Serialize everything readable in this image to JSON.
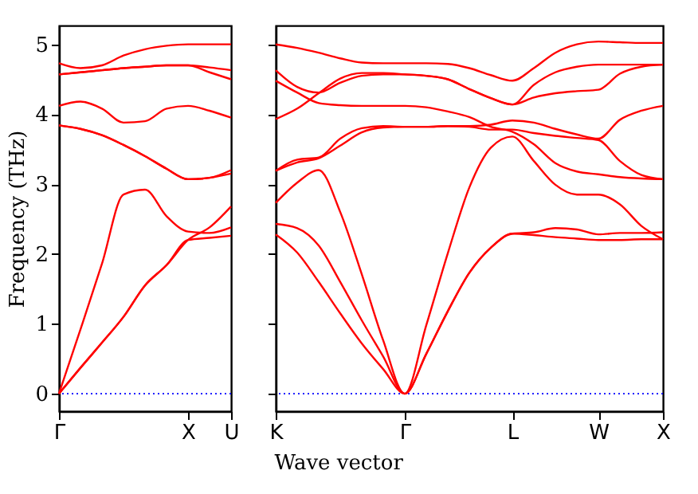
{
  "chart_data": [
    {
      "type": "line",
      "ylabel": "Frequency (THz)",
      "categories": [
        "Γ",
        null,
        null,
        null,
        null,
        null,
        "X",
        null,
        "U"
      ],
      "ylim": [
        -0.25,
        5.27
      ],
      "yticks": [
        0,
        1,
        2,
        3,
        4,
        5
      ],
      "ref_lines": [
        {
          "axis": "y",
          "value": 0,
          "color": "#0000ff",
          "line_style": "dotted"
        }
      ],
      "series": [
        {
          "color": "#ff0000",
          "values": [
            0,
            0.37,
            0.73,
            1.1,
            1.55,
            1.84,
            2.2,
            2.23,
            2.26
          ]
        },
        {
          "color": "#ff0000",
          "values": [
            0,
            0.37,
            0.73,
            1.1,
            1.55,
            1.84,
            2.2,
            2.38,
            2.68
          ]
        },
        {
          "color": "#ff0000",
          "values": [
            0,
            0.92,
            1.86,
            2.85,
            2.92,
            2.54,
            2.32,
            2.3,
            2.38
          ]
        },
        {
          "color": "#ff0000",
          "values": [
            3.84,
            3.79,
            3.7,
            3.56,
            3.4,
            3.22,
            3.07,
            3.09,
            3.15
          ]
        },
        {
          "color": "#ff0000",
          "values": [
            3.84,
            3.79,
            3.7,
            3.56,
            3.4,
            3.22,
            3.07,
            3.09,
            3.2
          ]
        },
        {
          "color": "#ff0000",
          "values": [
            4.12,
            4.18,
            4.08,
            3.88,
            3.9,
            4.08,
            4.12,
            4.05,
            3.95
          ]
        },
        {
          "color": "#ff0000",
          "values": [
            4.57,
            4.6,
            4.63,
            4.66,
            4.68,
            4.7,
            4.7,
            4.67,
            4.63
          ]
        },
        {
          "color": "#ff0000",
          "values": [
            4.57,
            4.6,
            4.63,
            4.66,
            4.68,
            4.7,
            4.7,
            4.6,
            4.5
          ]
        },
        {
          "color": "#ff0000",
          "values": [
            4.73,
            4.66,
            4.7,
            4.84,
            4.93,
            4.98,
            5.0,
            5.0,
            5.0
          ]
        }
      ]
    },
    {
      "type": "line",
      "xlabel": "Wave vector",
      "tick_labels": "x",
      "categories": [
        "K",
        null,
        null,
        null,
        null,
        null,
        "Γ",
        null,
        null,
        null,
        null,
        "L",
        null,
        null,
        null,
        "W",
        null,
        null,
        "X"
      ],
      "ylim": [
        -0.25,
        5.27
      ],
      "yticks": [
        0,
        1,
        2,
        3,
        4,
        5
      ],
      "ref_lines": [
        {
          "axis": "y",
          "value": 0,
          "color": "#0000ff",
          "line_style": "dotted"
        }
      ],
      "series": [
        {
          "color": "#ff0000",
          "values": [
            2.28,
            2.02,
            1.6,
            1.15,
            0.72,
            0.35,
            0,
            0.57,
            1.18,
            1.73,
            2.09,
            2.29,
            2.31,
            2.37,
            2.35,
            2.28,
            2.3,
            2.3,
            2.31
          ]
        },
        {
          "color": "#ff0000",
          "values": [
            2.43,
            2.37,
            2.12,
            1.6,
            1.05,
            0.53,
            0,
            0.57,
            1.18,
            1.73,
            2.09,
            2.29,
            2.27,
            2.24,
            2.22,
            2.2,
            2.2,
            2.21,
            2.21
          ]
        },
        {
          "color": "#ff0000",
          "values": [
            2.73,
            3.02,
            3.2,
            2.6,
            1.71,
            0.76,
            0,
            0.98,
            2.01,
            2.95,
            3.52,
            3.68,
            3.33,
            2.99,
            2.85,
            2.85,
            2.71,
            2.4,
            2.21
          ]
        },
        {
          "color": "#ff0000",
          "values": [
            3.19,
            3.31,
            3.37,
            3.55,
            3.74,
            3.81,
            3.82,
            3.82,
            3.83,
            3.82,
            3.78,
            3.78,
            3.73,
            3.69,
            3.66,
            3.63,
            3.33,
            3.13,
            3.07
          ]
        },
        {
          "color": "#ff0000",
          "values": [
            3.19,
            3.35,
            3.38,
            3.65,
            3.8,
            3.83,
            3.82,
            3.82,
            3.83,
            3.83,
            3.85,
            3.91,
            3.88,
            3.79,
            3.71,
            3.65,
            3.92,
            4.05,
            4.12
          ]
        },
        {
          "color": "#ff0000",
          "values": [
            4.48,
            4.31,
            4.16,
            4.13,
            4.12,
            4.12,
            4.12,
            4.1,
            4.04,
            3.96,
            3.82,
            3.75,
            3.57,
            3.3,
            3.18,
            3.14,
            3.1,
            3.08,
            3.07
          ]
        },
        {
          "color": "#ff0000",
          "values": [
            3.93,
            4.08,
            4.3,
            4.51,
            4.59,
            4.59,
            4.57,
            4.55,
            4.5,
            4.36,
            4.23,
            4.14,
            4.24,
            4.3,
            4.33,
            4.35,
            4.58,
            4.68,
            4.71
          ]
        },
        {
          "color": "#ff0000",
          "values": [
            4.63,
            4.39,
            4.31,
            4.45,
            4.55,
            4.57,
            4.57,
            4.55,
            4.5,
            4.36,
            4.23,
            4.14,
            4.42,
            4.6,
            4.68,
            4.71,
            4.71,
            4.71,
            4.71
          ]
        },
        {
          "color": "#ff0000",
          "values": [
            5.0,
            4.95,
            4.88,
            4.8,
            4.74,
            4.73,
            4.73,
            4.73,
            4.72,
            4.66,
            4.56,
            4.48,
            4.66,
            4.88,
            5.0,
            5.04,
            5.03,
            5.02,
            5.02
          ]
        }
      ]
    }
  ]
}
